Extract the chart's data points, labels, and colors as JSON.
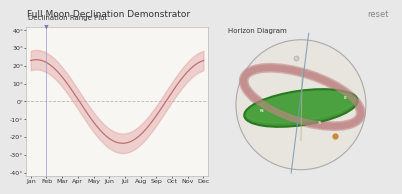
{
  "title": "Full Moon Declination Demonstrator",
  "reset_text": "reset",
  "left_panel_title": "Declination Range Plot",
  "right_panel_title": "Horizon Diagram",
  "months": [
    "Jan",
    "Feb",
    "Mar",
    "Apr",
    "May",
    "Jun",
    "Jul",
    "Aug",
    "Sep",
    "Oct",
    "Nov",
    "Dec"
  ],
  "ylim": [
    -42,
    42
  ],
  "yticks": [
    -40,
    -30,
    -20,
    -10,
    0,
    10,
    20,
    30,
    40
  ],
  "curve_color": "#c07070",
  "band_color": "#e0a0a0",
  "band_alpha": 0.45,
  "vline_color": "#9999cc",
  "vline_x": 1,
  "triangle_color": "#7777bb",
  "dashed_line_color": "#bbbbbb",
  "bg_color": "#e8e8e8",
  "panel_bg": "#f8f6f2",
  "panel_border": "#bbbbbb",
  "text_color": "#333333",
  "title_fontsize": 6.5,
  "axis_fontsize": 4.5,
  "panel_title_fontsize": 5.0,
  "sphere_bg": "#eeeae4",
  "sphere_color": "#e8e4de",
  "sphere_border": "#aaaaaa",
  "horizon_color": "#3a9030",
  "horizon_top_color": "#55bb44",
  "orbit_ring_color": "#c08888",
  "orbit_ring_alpha": 0.75,
  "moon_color": "#cc8833",
  "axis_line_color": "#7799bb",
  "meridian_color": "#aabb88",
  "pole_color": "#cccccc",
  "label_color": "#ccddcc",
  "reset_color": "#888888"
}
